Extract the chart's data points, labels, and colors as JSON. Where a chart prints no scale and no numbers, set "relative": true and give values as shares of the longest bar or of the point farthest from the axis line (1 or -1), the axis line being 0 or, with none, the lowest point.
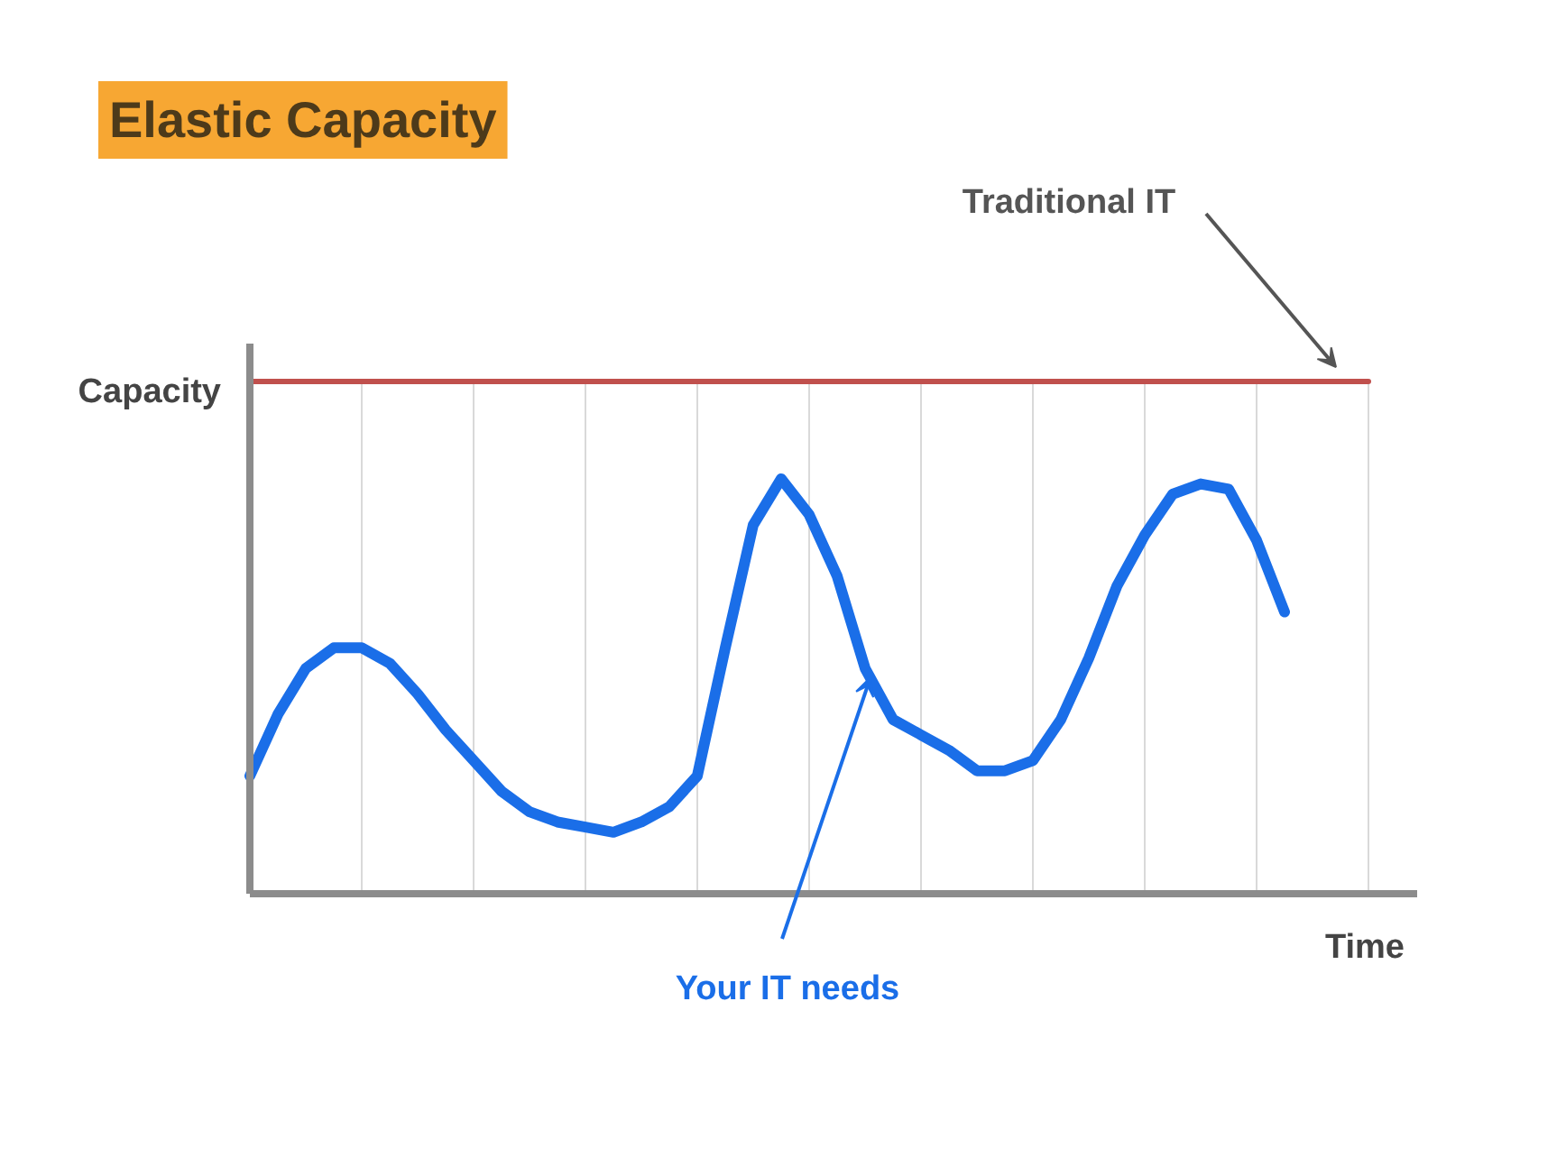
{
  "chart_data": {
    "type": "line",
    "title": "Elastic Capacity",
    "xlabel": "Time",
    "ylabel": "Capacity",
    "relative": true,
    "categories": [
      null,
      null,
      null,
      null,
      null,
      null,
      null,
      null,
      null,
      null,
      null,
      null,
      null,
      null,
      null,
      null,
      null,
      null,
      null,
      null,
      null,
      null,
      null,
      null,
      null,
      null,
      null,
      null,
      null,
      null,
      null,
      null,
      null,
      null,
      null,
      null,
      null,
      null,
      null,
      null,
      null
    ],
    "series": [
      {
        "name": "Traditional IT",
        "color": "#c0504d",
        "values": [
          1,
          1,
          1,
          1,
          1,
          1,
          1,
          1,
          1,
          1,
          1,
          1,
          1,
          1,
          1,
          1,
          1,
          1,
          1,
          1,
          1,
          1,
          1,
          1,
          1,
          1,
          1,
          1,
          1,
          1,
          1,
          1,
          1,
          1,
          1,
          1,
          1,
          1,
          1,
          1,
          1
        ]
      },
      {
        "name": "Your IT needs",
        "color": "#1a6ee8",
        "values": [
          0.23,
          0.35,
          0.44,
          0.48,
          0.48,
          0.45,
          0.39,
          0.32,
          0.26,
          0.2,
          0.16,
          0.14,
          0.13,
          0.12,
          0.14,
          0.17,
          0.23,
          0.48,
          0.72,
          0.81,
          0.74,
          0.62,
          0.44,
          0.34,
          0.31,
          0.28,
          0.24,
          0.24,
          0.26,
          0.34,
          0.46,
          0.6,
          0.7,
          0.78,
          0.8,
          0.79,
          0.69,
          0.55,
          null,
          null,
          null
        ]
      }
    ],
    "grid": "x",
    "marker": "none",
    "line_style": "solid"
  }
}
